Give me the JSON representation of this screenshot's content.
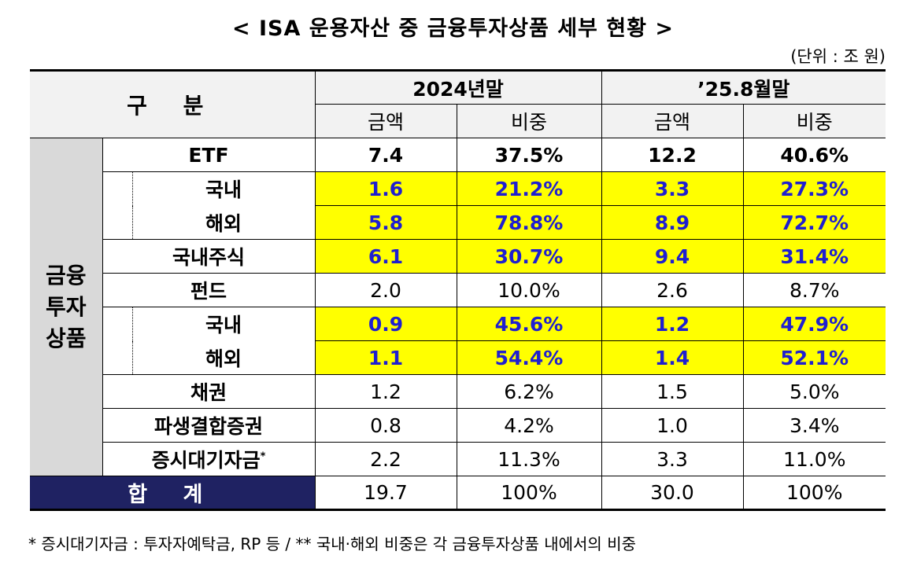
{
  "title": "< ISA 운용자산 중 금융투자상품 세부 현황 >",
  "unit": "(단위 : 조 원)",
  "header": {
    "gubun": "구 분",
    "period1": "2024년말",
    "period2": "’25.8월말",
    "amount": "금액",
    "share": "비중"
  },
  "side_label": [
    "금융",
    "투자",
    "상품"
  ],
  "rows": [
    {
      "label": "ETF",
      "a1": "7.4",
      "s1": "37.5%",
      "a2": "12.2",
      "s2": "40.6%"
    },
    {
      "label": "국내",
      "a1": "1.6",
      "s1": "21.2%",
      "a2": "3.3",
      "s2": "27.3%"
    },
    {
      "label": "해외",
      "a1": "5.8",
      "s1": "78.8%",
      "a2": "8.9",
      "s2": "72.7%"
    },
    {
      "label": "국내주식",
      "a1": "6.1",
      "s1": "30.7%",
      "a2": "9.4",
      "s2": "31.4%"
    },
    {
      "label": "펀드",
      "a1": "2.0",
      "s1": "10.0%",
      "a2": "2.6",
      "s2": "8.7%"
    },
    {
      "label": "국내",
      "a1": "0.9",
      "s1": "45.6%",
      "a2": "1.2",
      "s2": "47.9%"
    },
    {
      "label": "해외",
      "a1": "1.1",
      "s1": "54.4%",
      "a2": "1.4",
      "s2": "52.1%"
    },
    {
      "label": "채권",
      "a1": "1.2",
      "s1": "6.2%",
      "a2": "1.5",
      "s2": "5.0%"
    },
    {
      "label": "파생결합증권",
      "a1": "0.8",
      "s1": "4.2%",
      "a2": "1.0",
      "s2": "3.4%"
    },
    {
      "label": "증시대기자금",
      "a1": "2.2",
      "s1": "11.3%",
      "a2": "3.3",
      "s2": "11.0%"
    }
  ],
  "footnote_mark": "*",
  "total": {
    "label": "합 계",
    "a1": "19.7",
    "s1": "100%",
    "a2": "30.0",
    "s2": "100%"
  },
  "footnote": "* 증시대기자금 : 투자자예탁금, RP 등  /  ** 국내·해외 비중은 각 금융투자상품 내에서의 비중",
  "colors": {
    "highlight": "#ffff00",
    "highlight_text": "#1f1fd0",
    "total_bg": "#1f2262",
    "side_bg": "#d9d9d9"
  }
}
